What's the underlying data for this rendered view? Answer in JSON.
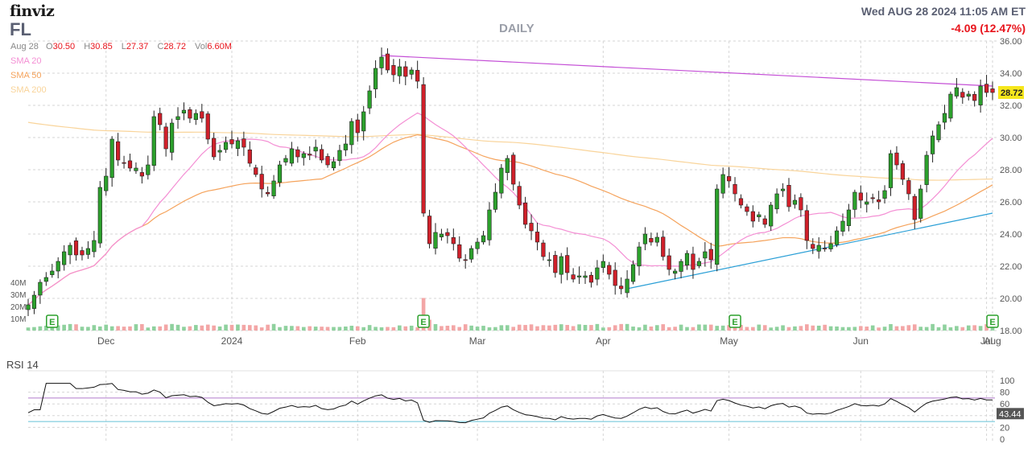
{
  "header": {
    "logo": "finviz",
    "ticker": "FL",
    "period": "DAILY",
    "datetime": "Wed AUG 28 2024 11:05 AM ET",
    "change": "-4.09 (12.47%)",
    "ohlc": {
      "date": "Aug 28",
      "open_label": "O",
      "open": "30.50",
      "high_label": "H",
      "high": "30.85",
      "low_label": "L",
      "low": "27.37",
      "close_label": "C",
      "close": "28.72",
      "vol_label": "Vol",
      "vol": "6.60M"
    },
    "sma_legend": [
      {
        "label": "SMA 20",
        "color": "#f48fd4"
      },
      {
        "label": "SMA 50",
        "color": "#f5a35c"
      },
      {
        "label": "SMA 200",
        "color": "#f9d49a"
      }
    ]
  },
  "colors": {
    "up": "#2ca02c",
    "down": "#d0202a",
    "sma20": "#f48fd4",
    "sma50": "#f5a35c",
    "sma200": "#f9d49a",
    "resistance": "#c44fd6",
    "support": "#2a9fd6",
    "price_badge": "#f6e71c",
    "rsi_line": "#111111",
    "rsi_overbought": "#b17acb",
    "rsi_oversold": "#66c2d6",
    "earnings": "#2ca02c"
  },
  "chart_data": [
    {
      "type": "candlestick",
      "title": "FL",
      "period": "DAILY",
      "y_ticks": [
        "18.00",
        "20.00",
        "22.00",
        "24.00",
        "26.00",
        "28.00",
        "30.00",
        "32.00",
        "34.00",
        "36.00"
      ],
      "ylim": [
        18,
        36
      ],
      "x_ticks": [
        "Dec",
        "2024",
        "Feb",
        "Mar",
        "Apr",
        "May",
        "Jun",
        "Jul",
        "Aug"
      ],
      "last_price_label": "28.72",
      "closes": [
        19.6,
        20.2,
        21.0,
        21.3,
        21.7,
        22.3,
        22.9,
        23.3,
        22.7,
        22.7,
        23.1,
        23.6,
        26.9,
        27.6,
        29.9,
        28.6,
        28.4,
        28.1,
        28.1,
        27.6,
        28.3,
        31.3,
        30.8,
        29.3,
        30.9,
        31.3,
        31.7,
        31.2,
        31.5,
        31.2,
        29.9,
        28.8,
        29.2,
        29.7,
        29.6,
        29.8,
        29.4,
        28.4,
        27.7,
        26.8,
        26.5,
        27.3,
        28.3,
        28.7,
        29.3,
        28.8,
        29.0,
        28.9,
        29.4,
        28.6,
        28.3,
        28.5,
        29.2,
        29.6,
        31.0,
        30.3,
        31.6,
        32.9,
        34.3,
        35.0,
        34.2,
        33.9,
        34.4,
        33.8,
        34.2,
        33.5,
        25.3,
        23.4,
        24.1,
        24.0,
        23.9,
        23.4,
        22.5,
        22.4,
        23.1,
        23.5,
        23.9,
        25.5,
        26.6,
        28.1,
        28.7,
        27.1,
        25.8,
        24.6,
        24.2,
        23.5,
        22.6,
        22.4,
        21.6,
        22.6,
        21.6,
        21.2,
        21.4,
        21.4,
        21.0,
        21.9,
        22.3,
        21.5,
        20.8,
        20.6,
        21.2,
        22.1,
        23.2,
        24.0,
        23.5,
        23.8,
        22.6,
        21.8,
        21.7,
        22.3,
        22.8,
        21.8,
        22.3,
        22.9,
        22.4,
        26.8,
        27.7,
        27.3,
        26.5,
        25.8,
        25.4,
        24.8,
        25.2,
        24.6,
        25.8,
        26.5,
        26.8,
        25.7,
        26.1,
        25.5,
        23.6,
        23.1,
        23.3,
        23.1,
        23.4,
        24.2,
        24.8,
        25.5,
        26.6,
        26.1,
        26.0,
        26.2,
        26.0,
        26.7,
        29.0,
        28.3,
        27.4,
        26.5,
        24.9,
        26.8,
        28.9,
        30.1,
        30.8,
        31.5,
        32.7,
        33.1,
        32.5,
        32.7,
        32.3,
        33.2,
        32.8,
        32.8
      ]
    },
    {
      "type": "bar",
      "title": "Volume",
      "y_ticks": [
        "40M",
        "30M",
        "20M",
        "10M"
      ],
      "earnings_markers": [
        "E",
        "E",
        "E",
        "E"
      ]
    },
    {
      "type": "line",
      "title": "RSI 14",
      "ylim": [
        0,
        100
      ],
      "y_ticks": [
        "0",
        "20",
        "40",
        "60",
        "80",
        "100"
      ],
      "overbought": 70,
      "oversold": 30,
      "last_value_label": "43.44"
    }
  ]
}
